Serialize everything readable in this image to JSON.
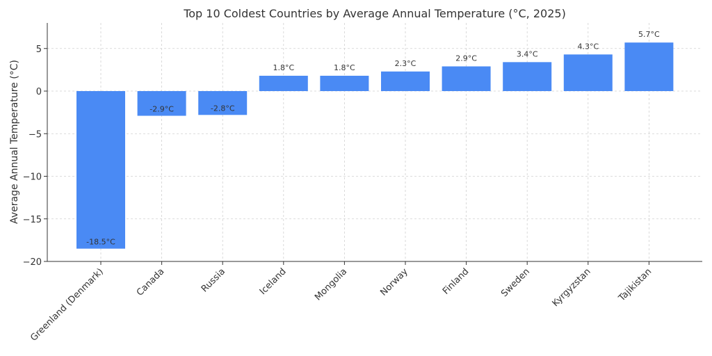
{
  "chart_data": {
    "type": "bar",
    "title": "Top 10 Coldest Countries by Average Annual Temperature (°C, 2025)",
    "xlabel": "",
    "ylabel": "Average Annual Temperature (°C)",
    "categories": [
      "Greenland (Denmark)",
      "Canada",
      "Russia",
      "Iceland",
      "Mongolia",
      "Norway",
      "Finland",
      "Sweden",
      "Kyrgyzstan",
      "Tajikistan"
    ],
    "values": [
      -18.5,
      -2.9,
      -2.8,
      1.8,
      1.8,
      2.3,
      2.9,
      3.4,
      4.3,
      5.7
    ],
    "data_labels": [
      "-18.5°C",
      "-2.9°C",
      "-2.8°C",
      "1.8°C",
      "1.8°C",
      "2.3°C",
      "2.9°C",
      "3.4°C",
      "4.3°C",
      "5.7°C"
    ],
    "ylim": [
      -20,
      8
    ],
    "yticks": [
      5,
      0,
      -5,
      -10,
      -15,
      -20
    ],
    "ytick_labels": [
      "5",
      "0",
      "−5",
      "−10",
      "−15",
      "−20"
    ],
    "grid": true,
    "bar_color": "#4a8af4"
  }
}
